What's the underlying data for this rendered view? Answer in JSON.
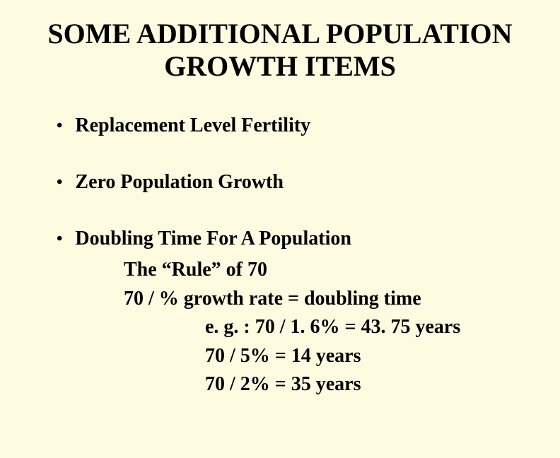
{
  "slide": {
    "background_color": "#fdfce0",
    "text_color": "#000000",
    "font_family": "Times New Roman",
    "title": "SOME ADDITIONAL POPULATION GROWTH ITEMS",
    "title_fontsize": 40,
    "body_fontsize": 28,
    "bullets": [
      {
        "text": "Replacement Level Fertility"
      },
      {
        "text": "Zero Population Growth"
      },
      {
        "text": "Doubling Time For A Population"
      }
    ],
    "sub_lines": [
      "The “Rule” of  70",
      "70  /   % growth rate = doubling time"
    ],
    "example_lines": [
      "e. g. : 70  /   1. 6%   =  43. 75 years",
      "70  /   5%   =  14 years",
      "70  /   2%   =  35 years"
    ]
  }
}
